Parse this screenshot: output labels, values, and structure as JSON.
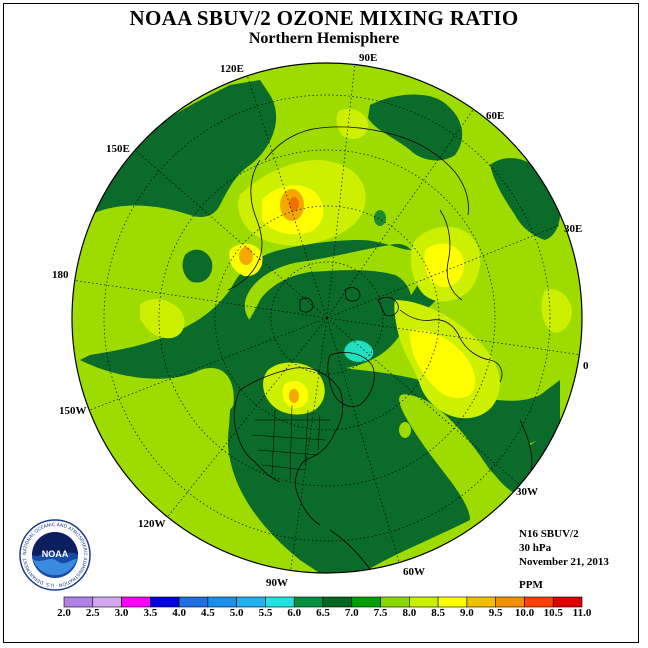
{
  "title": "NOAA SBUV/2 OZONE MIXING RATIO",
  "subtitle": "Northern Hemisphere",
  "longitude_labels": {
    "lon_90e": "90E",
    "lon_120e": "120E",
    "lon_60e": "60E",
    "lon_150e": "150E",
    "lon_30e": "30E",
    "lon_180": "180",
    "lon_0": "0",
    "lon_150w": "150W",
    "lon_30w": "30W",
    "lon_120w": "120W",
    "lon_60w": "60W",
    "lon_90w": "90W"
  },
  "info": {
    "instrument": "N16 SBUV/2",
    "level": "30 hPa",
    "date": "November 21, 2013",
    "units": "PPM"
  },
  "logo": {
    "text": "NOAA",
    "ring_text": "NATIONAL OCEANIC AND ATMOSPHERIC ADMINISTRATION · U.S. DEPARTMENT OF COMMERCE"
  },
  "colorbar": {
    "ticks": [
      "2.0",
      "2.5",
      "3.0",
      "3.5",
      "4.0",
      "4.5",
      "5.0",
      "5.5",
      "6.0",
      "6.5",
      "7.0",
      "7.5",
      "8.0",
      "8.5",
      "9.0",
      "9.5",
      "10.0",
      "10.5",
      "11.0"
    ],
    "colors": [
      "#b180e8",
      "#d4a8f0",
      "#ff00ff",
      "#0000dd",
      "#1e6fe0",
      "#1e8fe8",
      "#20b0f0",
      "#20e0e0",
      "#009040",
      "#006820",
      "#00a000",
      "#88d800",
      "#c8f000",
      "#ffff00",
      "#f0c000",
      "#f09000",
      "#ff4000",
      "#dd0000",
      "#8b4513"
    ]
  },
  "map_colors": {
    "dark_green": "#0b6b2a",
    "light_green": "#9edc00",
    "yellow_green": "#ccf000",
    "yellow": "#ffff00",
    "orange": "#f5a800",
    "cyan": "#20e0c0",
    "mid_green": "#1a8a30"
  }
}
